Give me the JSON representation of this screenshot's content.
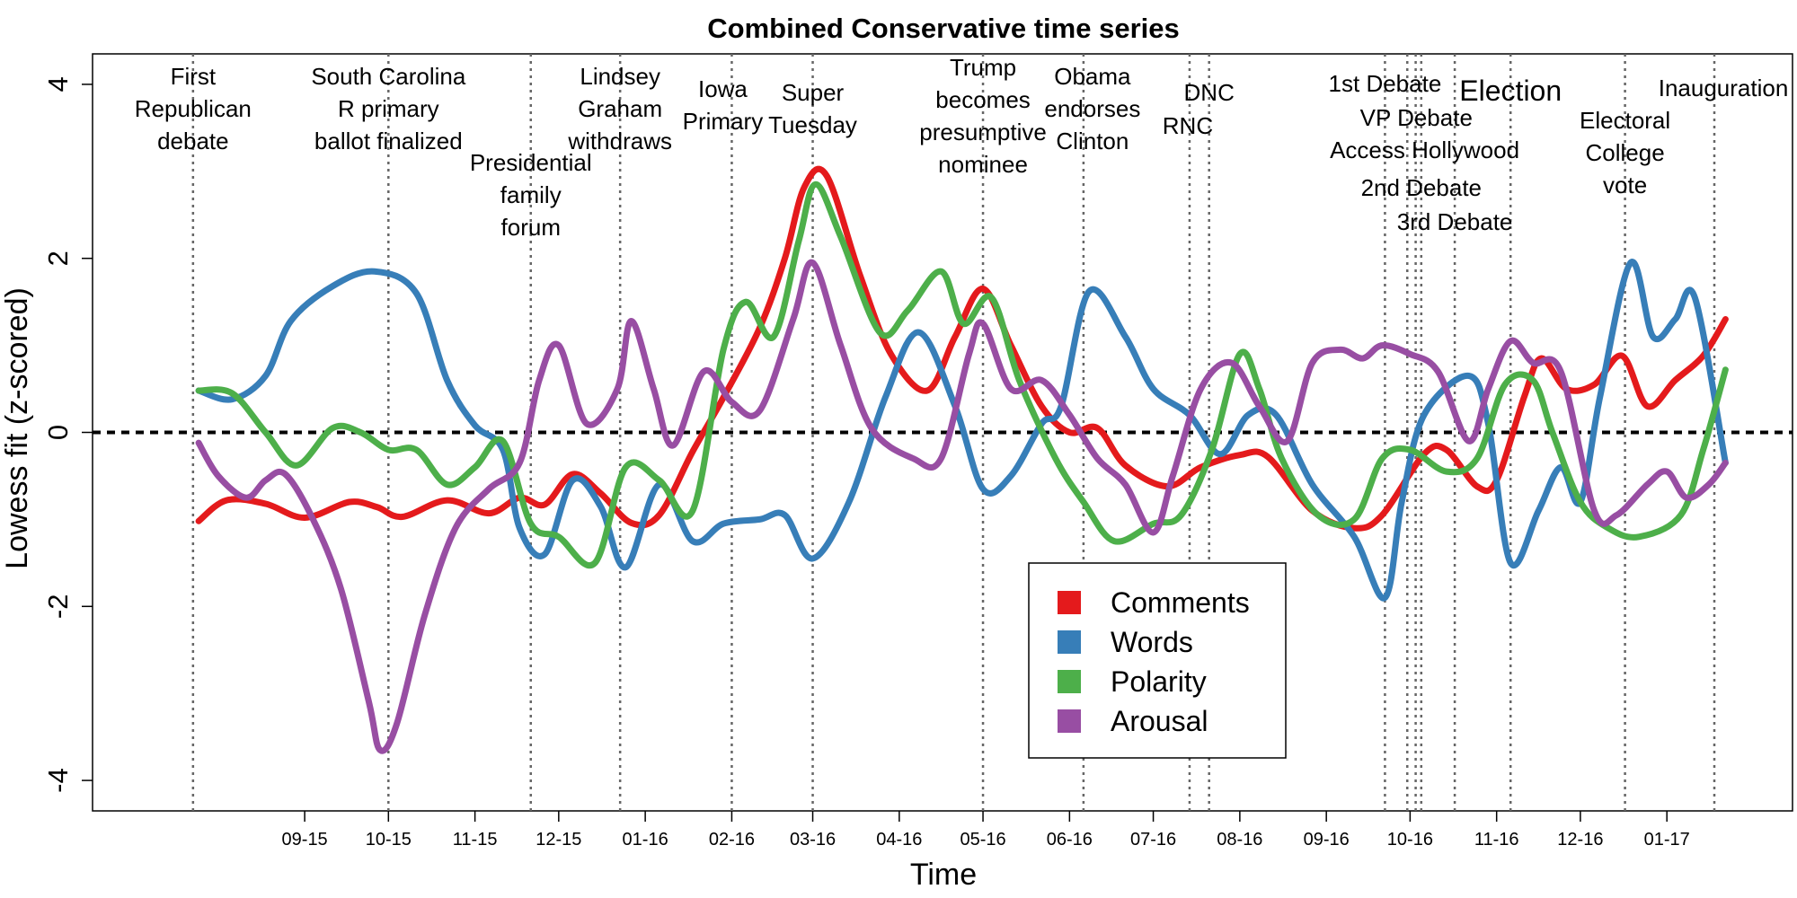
{
  "chart_data": {
    "type": "line",
    "title": "Combined Conservative time series",
    "xlabel": "Time",
    "ylabel": "Lowess fit (z-scored)",
    "ylim": [
      -4.35,
      4.35
    ],
    "xlim": [
      "2015-07-01",
      "2017-03-01"
    ],
    "yticks": [
      -4,
      -2,
      0,
      2,
      4
    ],
    "xticks": [
      {
        "date": "2015-09-15",
        "label": "09-15"
      },
      {
        "date": "2015-10-15",
        "label": "10-15"
      },
      {
        "date": "2015-11-15",
        "label": "11-15"
      },
      {
        "date": "2015-12-15",
        "label": "12-15"
      },
      {
        "date": "2016-01-15",
        "label": "01-16"
      },
      {
        "date": "2016-02-15",
        "label": "02-16"
      },
      {
        "date": "2016-03-15",
        "label": "03-16"
      },
      {
        "date": "2016-04-15",
        "label": "04-16"
      },
      {
        "date": "2016-05-15",
        "label": "05-16"
      },
      {
        "date": "2016-06-15",
        "label": "06-16"
      },
      {
        "date": "2016-07-15",
        "label": "07-16"
      },
      {
        "date": "2016-08-15",
        "label": "08-16"
      },
      {
        "date": "2016-09-15",
        "label": "09-16"
      },
      {
        "date": "2016-10-15",
        "label": "10-16"
      },
      {
        "date": "2016-11-15",
        "label": "11-16"
      },
      {
        "date": "2016-12-15",
        "label": "12-16"
      },
      {
        "date": "2017-01-15",
        "label": "01-17"
      }
    ],
    "reference_line": {
      "y": 0,
      "style": "dashed"
    },
    "grid": false,
    "legend_position": "bottom-center",
    "events": [
      {
        "date": "2015-08-06",
        "lines": [
          "First",
          "Republican",
          "debate"
        ]
      },
      {
        "date": "2015-10-15",
        "lines": [
          "South Carolina",
          "R primary",
          "ballot finalized"
        ]
      },
      {
        "date": "2015-12-05",
        "lines": [
          "Presidential",
          "family",
          "forum"
        ]
      },
      {
        "date": "2016-01-06",
        "lines": [
          "Lindsey",
          "Graham",
          "withdraws"
        ]
      },
      {
        "date": "2016-02-15",
        "lines": [
          "Iowa",
          "Primary"
        ]
      },
      {
        "date": "2016-03-15",
        "lines": [
          "Super",
          "Tuesday"
        ]
      },
      {
        "date": "2016-05-15",
        "lines": [
          "Trump",
          "becomes",
          "presumptive",
          "nominee"
        ]
      },
      {
        "date": "2016-06-20",
        "lines": [
          "Obama",
          "endorses",
          "Clinton"
        ]
      },
      {
        "date": "2016-07-28",
        "lines": [
          "RNC"
        ]
      },
      {
        "date": "2016-08-04",
        "lines": [
          "DNC"
        ]
      },
      {
        "date": "2016-10-06",
        "lines": [
          "1st Debate"
        ]
      },
      {
        "date": "2016-10-14",
        "lines": [
          "VP Debate"
        ]
      },
      {
        "date": "2016-10-17",
        "lines": [
          "Access Hollywood"
        ]
      },
      {
        "date": "2016-10-19",
        "lines": [
          "2nd Debate"
        ]
      },
      {
        "date": "2016-10-31",
        "lines": [
          "3rd Debate"
        ]
      },
      {
        "date": "2016-11-20",
        "lines": [
          "Election"
        ]
      },
      {
        "date": "2016-12-31",
        "lines": [
          "Electoral",
          "College",
          "vote"
        ]
      },
      {
        "date": "2017-02-01",
        "lines": [
          "Inauguration"
        ]
      }
    ],
    "series": [
      {
        "name": "Comments",
        "color": "#e41a1c",
        "points": [
          [
            "2015-08-08",
            -1.02
          ],
          [
            "2015-08-18",
            -0.78
          ],
          [
            "2015-09-01",
            -0.82
          ],
          [
            "2015-09-15",
            -0.98
          ],
          [
            "2015-10-01",
            -0.8
          ],
          [
            "2015-10-11",
            -0.86
          ],
          [
            "2015-10-20",
            -0.97
          ],
          [
            "2015-11-05",
            -0.78
          ],
          [
            "2015-11-20",
            -0.93
          ],
          [
            "2015-12-01",
            -0.75
          ],
          [
            "2015-12-10",
            -0.83
          ],
          [
            "2015-12-20",
            -0.48
          ],
          [
            "2015-12-30",
            -0.7
          ],
          [
            "2016-01-10",
            -1.04
          ],
          [
            "2016-01-20",
            -0.95
          ],
          [
            "2016-02-01",
            -0.22
          ],
          [
            "2016-02-12",
            0.4
          ],
          [
            "2016-02-25",
            1.2
          ],
          [
            "2016-03-05",
            2.0
          ],
          [
            "2016-03-12",
            2.82
          ],
          [
            "2016-03-20",
            2.95
          ],
          [
            "2016-04-01",
            1.8
          ],
          [
            "2016-04-12",
            0.9
          ],
          [
            "2016-04-25",
            0.48
          ],
          [
            "2016-05-05",
            1.1
          ],
          [
            "2016-05-15",
            1.65
          ],
          [
            "2016-05-25",
            1.0
          ],
          [
            "2016-06-05",
            0.3
          ],
          [
            "2016-06-15",
            0.0
          ],
          [
            "2016-06-25",
            0.05
          ],
          [
            "2016-07-05",
            -0.38
          ],
          [
            "2016-07-20",
            -0.62
          ],
          [
            "2016-08-01",
            -0.4
          ],
          [
            "2016-08-15",
            -0.26
          ],
          [
            "2016-08-25",
            -0.28
          ],
          [
            "2016-09-10",
            -0.9
          ],
          [
            "2016-09-25",
            -1.1
          ],
          [
            "2016-10-05",
            -0.95
          ],
          [
            "2016-10-20",
            -0.25
          ],
          [
            "2016-10-28",
            -0.2
          ],
          [
            "2016-11-08",
            -0.62
          ],
          [
            "2016-11-15",
            -0.55
          ],
          [
            "2016-11-25",
            0.42
          ],
          [
            "2016-12-01",
            0.85
          ],
          [
            "2016-12-10",
            0.5
          ],
          [
            "2016-12-20",
            0.55
          ],
          [
            "2016-12-30",
            0.88
          ],
          [
            "2017-01-08",
            0.3
          ],
          [
            "2017-01-18",
            0.6
          ],
          [
            "2017-01-28",
            0.88
          ],
          [
            "2017-02-05",
            1.3
          ]
        ]
      },
      {
        "name": "Words",
        "color": "#377eb8",
        "points": [
          [
            "2015-08-08",
            0.48
          ],
          [
            "2015-08-20",
            0.38
          ],
          [
            "2015-09-01",
            0.65
          ],
          [
            "2015-09-10",
            1.28
          ],
          [
            "2015-09-25",
            1.68
          ],
          [
            "2015-10-10",
            1.85
          ],
          [
            "2015-10-25",
            1.6
          ],
          [
            "2015-11-05",
            0.6
          ],
          [
            "2015-11-15",
            0.08
          ],
          [
            "2015-11-25",
            -0.2
          ],
          [
            "2015-12-01",
            -1.1
          ],
          [
            "2015-12-10",
            -1.4
          ],
          [
            "2015-12-20",
            -0.55
          ],
          [
            "2015-12-30",
            -0.85
          ],
          [
            "2016-01-08",
            -1.55
          ],
          [
            "2016-01-20",
            -0.6
          ],
          [
            "2016-02-01",
            -1.25
          ],
          [
            "2016-02-12",
            -1.05
          ],
          [
            "2016-02-25",
            -1.0
          ],
          [
            "2016-03-05",
            -0.95
          ],
          [
            "2016-03-15",
            -1.45
          ],
          [
            "2016-03-28",
            -0.8
          ],
          [
            "2016-04-10",
            0.4
          ],
          [
            "2016-04-22",
            1.15
          ],
          [
            "2016-05-05",
            0.3
          ],
          [
            "2016-05-15",
            -0.65
          ],
          [
            "2016-05-25",
            -0.5
          ],
          [
            "2016-06-05",
            0.1
          ],
          [
            "2016-06-12",
            0.3
          ],
          [
            "2016-06-22",
            1.62
          ],
          [
            "2016-07-05",
            1.1
          ],
          [
            "2016-07-15",
            0.5
          ],
          [
            "2016-07-28",
            0.2
          ],
          [
            "2016-08-08",
            -0.25
          ],
          [
            "2016-08-18",
            0.2
          ],
          [
            "2016-08-28",
            0.2
          ],
          [
            "2016-09-10",
            -0.6
          ],
          [
            "2016-09-25",
            -1.2
          ],
          [
            "2016-10-06",
            -1.9
          ],
          [
            "2016-10-12",
            -0.8
          ],
          [
            "2016-10-20",
            0.2
          ],
          [
            "2016-11-05",
            0.65
          ],
          [
            "2016-11-12",
            0.1
          ],
          [
            "2016-11-20",
            -1.5
          ],
          [
            "2016-11-30",
            -0.9
          ],
          [
            "2016-12-08",
            -0.4
          ],
          [
            "2016-12-15",
            -0.8
          ],
          [
            "2016-12-22",
            0.4
          ],
          [
            "2017-01-02",
            1.95
          ],
          [
            "2017-01-10",
            1.1
          ],
          [
            "2017-01-18",
            1.3
          ],
          [
            "2017-01-25",
            1.55
          ],
          [
            "2017-02-05",
            -0.35
          ]
        ]
      },
      {
        "name": "Polarity",
        "color": "#4daf4a",
        "points": [
          [
            "2015-08-08",
            0.48
          ],
          [
            "2015-08-20",
            0.45
          ],
          [
            "2015-09-01",
            0.0
          ],
          [
            "2015-09-12",
            -0.38
          ],
          [
            "2015-09-25",
            0.05
          ],
          [
            "2015-10-05",
            0.0
          ],
          [
            "2015-10-15",
            -0.2
          ],
          [
            "2015-10-25",
            -0.2
          ],
          [
            "2015-11-05",
            -0.6
          ],
          [
            "2015-11-15",
            -0.4
          ],
          [
            "2015-11-25",
            -0.1
          ],
          [
            "2015-12-05",
            -1.05
          ],
          [
            "2015-12-15",
            -1.2
          ],
          [
            "2015-12-28",
            -1.5
          ],
          [
            "2016-01-08",
            -0.4
          ],
          [
            "2016-01-20",
            -0.55
          ],
          [
            "2016-02-01",
            -0.9
          ],
          [
            "2016-02-12",
            0.95
          ],
          [
            "2016-02-20",
            1.5
          ],
          [
            "2016-03-01",
            1.1
          ],
          [
            "2016-03-10",
            2.2
          ],
          [
            "2016-03-16",
            2.85
          ],
          [
            "2016-03-25",
            2.25
          ],
          [
            "2016-04-08",
            1.15
          ],
          [
            "2016-04-18",
            1.4
          ],
          [
            "2016-04-30",
            1.85
          ],
          [
            "2016-05-08",
            1.25
          ],
          [
            "2016-05-18",
            1.55
          ],
          [
            "2016-05-28",
            0.6
          ],
          [
            "2016-06-10",
            -0.3
          ],
          [
            "2016-06-20",
            -0.8
          ],
          [
            "2016-07-01",
            -1.25
          ],
          [
            "2016-07-15",
            -1.05
          ],
          [
            "2016-07-25",
            -0.95
          ],
          [
            "2016-08-05",
            -0.2
          ],
          [
            "2016-08-15",
            0.9
          ],
          [
            "2016-08-22",
            0.5
          ],
          [
            "2016-08-30",
            -0.3
          ],
          [
            "2016-09-12",
            -0.95
          ],
          [
            "2016-09-25",
            -1.0
          ],
          [
            "2016-10-05",
            -0.3
          ],
          [
            "2016-10-15",
            -0.2
          ],
          [
            "2016-10-28",
            -0.45
          ],
          [
            "2016-11-08",
            -0.3
          ],
          [
            "2016-11-18",
            0.55
          ],
          [
            "2016-11-28",
            0.6
          ],
          [
            "2016-12-05",
            0.0
          ],
          [
            "2016-12-15",
            -0.8
          ],
          [
            "2016-12-25",
            -1.1
          ],
          [
            "2017-01-05",
            -1.2
          ],
          [
            "2017-01-20",
            -0.95
          ],
          [
            "2017-01-28",
            -0.2
          ],
          [
            "2017-02-05",
            0.72
          ]
        ]
      },
      {
        "name": "Arousal",
        "color": "#984ea3",
        "points": [
          [
            "2015-08-08",
            -0.12
          ],
          [
            "2015-08-15",
            -0.5
          ],
          [
            "2015-08-25",
            -0.75
          ],
          [
            "2015-09-01",
            -0.55
          ],
          [
            "2015-09-08",
            -0.48
          ],
          [
            "2015-09-18",
            -1.0
          ],
          [
            "2015-09-28",
            -1.8
          ],
          [
            "2015-10-08",
            -3.1
          ],
          [
            "2015-10-12",
            -3.65
          ],
          [
            "2015-10-18",
            -3.35
          ],
          [
            "2015-10-28",
            -2.1
          ],
          [
            "2015-11-08",
            -1.1
          ],
          [
            "2015-11-20",
            -0.65
          ],
          [
            "2015-12-01",
            -0.35
          ],
          [
            "2015-12-08",
            0.6
          ],
          [
            "2015-12-15",
            1.0
          ],
          [
            "2015-12-25",
            0.1
          ],
          [
            "2016-01-05",
            0.5
          ],
          [
            "2016-01-10",
            1.28
          ],
          [
            "2016-01-18",
            0.5
          ],
          [
            "2016-01-25",
            -0.15
          ],
          [
            "2016-02-05",
            0.7
          ],
          [
            "2016-02-15",
            0.35
          ],
          [
            "2016-02-25",
            0.25
          ],
          [
            "2016-03-08",
            1.3
          ],
          [
            "2016-03-15",
            1.95
          ],
          [
            "2016-03-25",
            1.0
          ],
          [
            "2016-04-05",
            0.05
          ],
          [
            "2016-04-20",
            -0.3
          ],
          [
            "2016-04-30",
            -0.3
          ],
          [
            "2016-05-10",
            0.9
          ],
          [
            "2016-05-15",
            1.25
          ],
          [
            "2016-05-25",
            0.5
          ],
          [
            "2016-06-05",
            0.6
          ],
          [
            "2016-06-15",
            0.2
          ],
          [
            "2016-06-25",
            -0.3
          ],
          [
            "2016-07-05",
            -0.6
          ],
          [
            "2016-07-15",
            -1.15
          ],
          [
            "2016-07-22",
            -0.5
          ],
          [
            "2016-08-01",
            0.5
          ],
          [
            "2016-08-12",
            0.8
          ],
          [
            "2016-08-22",
            0.3
          ],
          [
            "2016-09-01",
            -0.1
          ],
          [
            "2016-09-10",
            0.8
          ],
          [
            "2016-09-20",
            0.95
          ],
          [
            "2016-09-28",
            0.85
          ],
          [
            "2016-10-05",
            1.0
          ],
          [
            "2016-10-15",
            0.9
          ],
          [
            "2016-10-25",
            0.7
          ],
          [
            "2016-11-05",
            -0.1
          ],
          [
            "2016-11-12",
            0.5
          ],
          [
            "2016-11-20",
            1.05
          ],
          [
            "2016-11-28",
            0.8
          ],
          [
            "2016-12-08",
            0.7
          ],
          [
            "2016-12-20",
            -0.9
          ],
          [
            "2016-12-28",
            -0.95
          ],
          [
            "2017-01-08",
            -0.6
          ],
          [
            "2017-01-15",
            -0.45
          ],
          [
            "2017-01-22",
            -0.75
          ],
          [
            "2017-01-30",
            -0.6
          ],
          [
            "2017-02-05",
            -0.35
          ]
        ]
      }
    ]
  }
}
